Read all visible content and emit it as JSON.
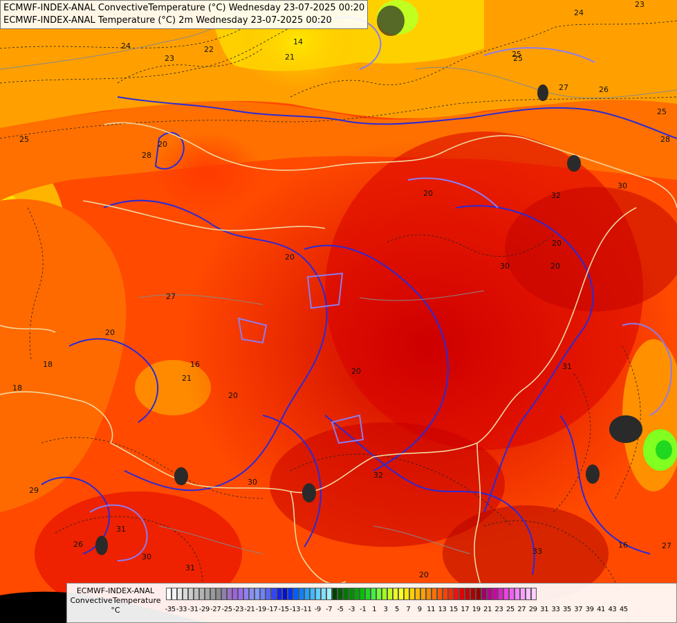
{
  "header": {
    "line1": "ECMWF-INDEX-ANAL ConvectiveTemperature (°C) Wednesday 23-07-2025 00:20",
    "line2": "ECMWF-INDEX-ANAL Temperature (°C) 2m Wednesday 23-07-2025 00:20"
  },
  "legend": {
    "line1": "ECMWF-INDEX-ANAL",
    "line2": "ConvectiveTemperature",
    "unit": "°C",
    "ticks": [
      "-35",
      "-33",
      "-31",
      "-29",
      "-27",
      "-25",
      "-23",
      "-21",
      "-19",
      "-17",
      "-15",
      "-13",
      "-11",
      "-9",
      "-7",
      "-5",
      "-3",
      "-1",
      "1",
      "3",
      "5",
      "7",
      "9",
      "11",
      "13",
      "15",
      "17",
      "19",
      "21",
      "23",
      "25",
      "27",
      "29",
      "31",
      "33",
      "35",
      "37",
      "39",
      "41",
      "43",
      "45"
    ],
    "colors": [
      "#ffffff",
      "#f2f2f2",
      "#e6e6e6",
      "#d9d9d9",
      "#cccccc",
      "#bfbfbf",
      "#b3b3b3",
      "#a6a6a6",
      "#9a9a9a",
      "#8c8c8c",
      "#8f7fb0",
      "#9a70c8",
      "#a060e0",
      "#9a6cf0",
      "#9080f5",
      "#8a8ff8",
      "#7f9bff",
      "#7080ff",
      "#5566ff",
      "#3344ff",
      "#1020f0",
      "#0010d0",
      "#0030ff",
      "#0060ff",
      "#1080ff",
      "#20a0ff",
      "#40b8ff",
      "#60d0ff",
      "#80e0ff",
      "#a0f0ff",
      "#004000",
      "#006000",
      "#007800",
      "#009000",
      "#00a800",
      "#00c000",
      "#20d820",
      "#40f040",
      "#70ff30",
      "#a0ff20",
      "#c8ff20",
      "#e8ff20",
      "#ffff20",
      "#ffe800",
      "#ffd000",
      "#ffb800",
      "#ffa000",
      "#ff8800",
      "#ff7000",
      "#ff5800",
      "#ff4000",
      "#ff2800",
      "#f01010",
      "#e00000",
      "#c80000",
      "#b00000",
      "#980000",
      "#a0006a",
      "#b8008a",
      "#d000a8",
      "#e020c8",
      "#ec40e0",
      "#f060f0",
      "#f480ff",
      "#f8a0ff",
      "#fcc0ff"
    ],
    "colors_end": [
      "#ffd0ff"
    ]
  },
  "map": {
    "labels": [
      "24",
      "22",
      "23",
      "21",
      "14",
      "23",
      "24",
      "25",
      "27",
      "26",
      "25",
      "28",
      "25",
      "28",
      "20",
      "30",
      "32",
      "20",
      "20",
      "27",
      "30",
      "20",
      "18",
      "18",
      "20",
      "16",
      "21",
      "20",
      "30",
      "32",
      "29",
      "31",
      "26",
      "30",
      "31",
      "20",
      "33",
      "16",
      "27",
      "31",
      "25",
      "20",
      "20"
    ]
  }
}
